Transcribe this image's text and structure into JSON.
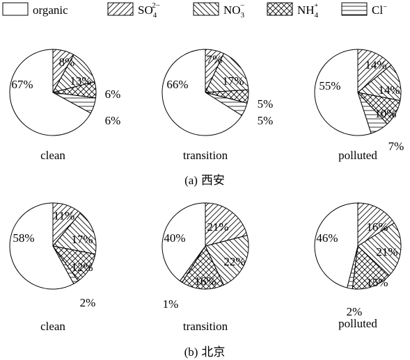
{
  "legend": [
    {
      "key": "organic",
      "label": "organic",
      "pattern": "none"
    },
    {
      "key": "so4",
      "label": "SO",
      "sub": "4",
      "sup": "2−",
      "pattern": "diag-fwd"
    },
    {
      "key": "no3",
      "label": "NO",
      "sub": "3",
      "sup": "−",
      "pattern": "diag-back"
    },
    {
      "key": "nh4",
      "label": "NH",
      "sub": "4",
      "sup": "+",
      "pattern": "crosshatch"
    },
    {
      "key": "cl",
      "label": "Cl",
      "sup": "−",
      "pattern": "horizontal"
    }
  ],
  "panels": [
    {
      "caption_prefix": "(a)",
      "caption_city": "西安"
    },
    {
      "caption_prefix": "(b)",
      "caption_city": "北京"
    }
  ],
  "chart_data": [
    {
      "type": "pie",
      "panel": "(a) 西安",
      "title": "clean",
      "categories": [
        "organic",
        "SO4 2−",
        "NO3 −",
        "NH4 +",
        "Cl −"
      ],
      "values": [
        67,
        8,
        13,
        6,
        6
      ],
      "labels": [
        "67%",
        "8%",
        "13%",
        "6%",
        "6%"
      ]
    },
    {
      "type": "pie",
      "panel": "(a) 西安",
      "title": "transition",
      "categories": [
        "organic",
        "SO4 2−",
        "NO3 −",
        "NH4 +",
        "Cl −"
      ],
      "values": [
        66,
        7,
        17,
        5,
        5
      ],
      "labels": [
        "66%",
        "7%",
        "17%",
        "5%",
        "5%"
      ]
    },
    {
      "type": "pie",
      "panel": "(a) 西安",
      "title": "polluted",
      "categories": [
        "organic",
        "SO4 2−",
        "NO3 −",
        "NH4 +",
        "Cl −"
      ],
      "values": [
        55,
        14,
        14,
        10,
        7
      ],
      "labels": [
        "55%",
        "14%",
        "14%",
        "10%",
        "7%"
      ]
    },
    {
      "type": "pie",
      "panel": "(b) 北京",
      "title": "clean",
      "categories": [
        "organic",
        "SO4 2−",
        "NO3 −",
        "NH4 +",
        "Cl −"
      ],
      "values": [
        58,
        11,
        17,
        12,
        2
      ],
      "labels": [
        "58%",
        "11%",
        "17%",
        "12%",
        "2%"
      ]
    },
    {
      "type": "pie",
      "panel": "(b) 北京",
      "title": "transition",
      "categories": [
        "organic",
        "SO4 2−",
        "NO3 −",
        "NH4 +",
        "Cl −"
      ],
      "values": [
        40,
        21,
        22,
        16,
        1
      ],
      "labels": [
        "40%",
        "21%",
        "22%",
        "16%",
        "1%"
      ]
    },
    {
      "type": "pie",
      "panel": "(b) 北京",
      "title": "polluted",
      "categories": [
        "organic",
        "SO4 2−",
        "NO3 −",
        "NH4 +",
        "Cl −"
      ],
      "values": [
        46,
        16,
        21,
        15,
        2
      ],
      "labels": [
        "46%",
        "16%",
        "21%",
        "15%",
        "2%"
      ]
    }
  ]
}
